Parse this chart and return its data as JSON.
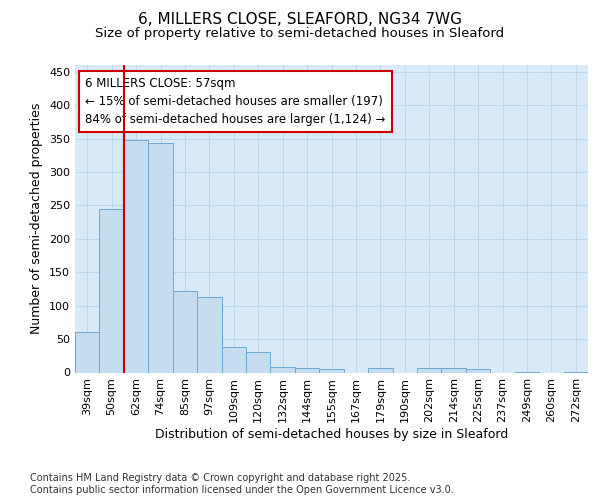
{
  "title_line1": "6, MILLERS CLOSE, SLEAFORD, NG34 7WG",
  "title_line2": "Size of property relative to semi-detached houses in Sleaford",
  "xlabel": "Distribution of semi-detached houses by size in Sleaford",
  "ylabel": "Number of semi-detached properties",
  "categories": [
    "39sqm",
    "50sqm",
    "62sqm",
    "74sqm",
    "85sqm",
    "97sqm",
    "109sqm",
    "120sqm",
    "132sqm",
    "144sqm",
    "155sqm",
    "167sqm",
    "179sqm",
    "190sqm",
    "202sqm",
    "214sqm",
    "225sqm",
    "237sqm",
    "249sqm",
    "260sqm",
    "272sqm"
  ],
  "values": [
    60,
    244,
    348,
    344,
    122,
    113,
    38,
    30,
    8,
    6,
    5,
    0,
    6,
    0,
    6,
    6,
    5,
    0,
    1,
    0,
    1
  ],
  "bar_color": "#c5ddf0",
  "bar_edge_color": "#6aaad4",
  "vline_color": "#cc0000",
  "vline_x": 1.5,
  "annotation_text": "6 MILLERS CLOSE: 57sqm\n← 15% of semi-detached houses are smaller (197)\n84% of semi-detached houses are larger (1,124) →",
  "annotation_box_color": "#ffffff",
  "annotation_box_edge": "#cc0000",
  "ylim": [
    0,
    460
  ],
  "yticks": [
    0,
    50,
    100,
    150,
    200,
    250,
    300,
    350,
    400,
    450
  ],
  "grid_color": "#c0d8ee",
  "background_color": "#d8eaf8",
  "footer_text": "Contains HM Land Registry data © Crown copyright and database right 2025.\nContains public sector information licensed under the Open Government Licence v3.0.",
  "title_fontsize": 11,
  "subtitle_fontsize": 9.5,
  "axis_label_fontsize": 9,
  "tick_fontsize": 8,
  "annotation_fontsize": 8.5,
  "footer_fontsize": 7
}
